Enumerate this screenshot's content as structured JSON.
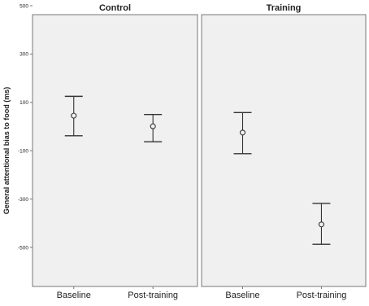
{
  "chart_data": {
    "type": "scatter",
    "subtype": "error-bar",
    "ylabel": "General attentional bias to food (ms)",
    "ylim": [
      -560,
      580
    ],
    "yticks": [
      500,
      300,
      100,
      -100,
      -300,
      -500
    ],
    "ytick_labels": [
      "500",
      "300",
      "100",
      "-100",
      "-300",
      "-500"
    ],
    "categories": [
      "Baseline",
      "Post-training"
    ],
    "panels": [
      {
        "title": "Control",
        "points": [
          {
            "category": "Baseline",
            "mean": 45,
            "lower": -38,
            "upper": 125
          },
          {
            "category": "Post-training",
            "mean": 1,
            "lower": -63,
            "upper": 50
          }
        ]
      },
      {
        "title": "Training",
        "points": [
          {
            "category": "Baseline",
            "mean": -25,
            "lower": -112,
            "upper": 58
          },
          {
            "category": "Post-training",
            "mean": -405,
            "lower": -487,
            "upper": -318
          }
        ]
      }
    ],
    "grid": false,
    "colors": {
      "panel_bg": "#f0f0f0",
      "frame": "#777777",
      "marks": "#333333"
    }
  }
}
